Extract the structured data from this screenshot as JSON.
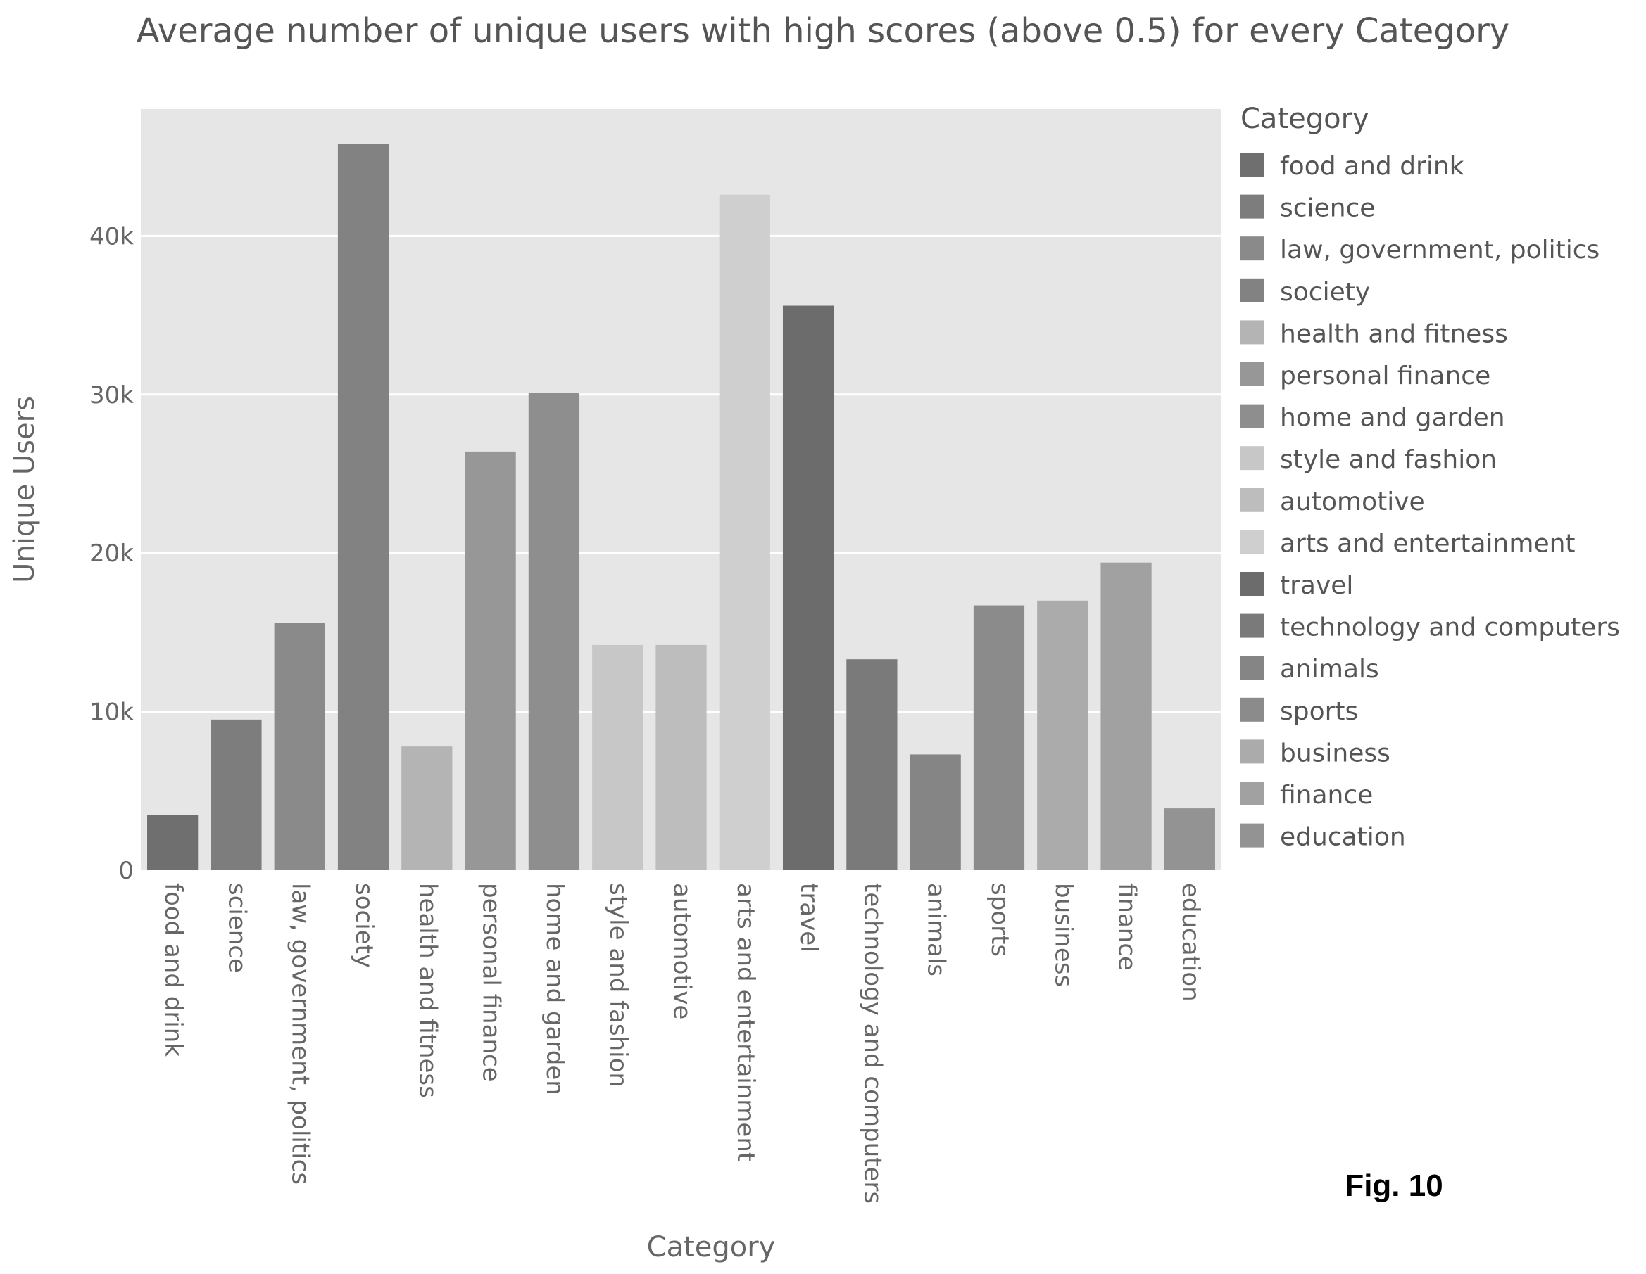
{
  "fig_label": "Fig. 10",
  "colors": {
    "plot_background": "#e6e6e6",
    "gridline": "#ffffff"
  },
  "chart_data": {
    "type": "bar",
    "title": "Average number of unique users with high scores (above 0.5) for every Category",
    "xlabel": "Category",
    "ylabel": "Unique Users",
    "legend_title": "Category",
    "legend_position": "right",
    "grid": true,
    "ylim": [
      0,
      48000
    ],
    "yticks": [
      {
        "value": 0,
        "label": "0"
      },
      {
        "value": 10000,
        "label": "10k"
      },
      {
        "value": 20000,
        "label": "20k"
      },
      {
        "value": 30000,
        "label": "30k"
      },
      {
        "value": 40000,
        "label": "40k"
      }
    ],
    "categories": [
      "food and drink",
      "science",
      "law, government, politics",
      "society",
      "health and fitness",
      "personal finance",
      "home and garden",
      "style and fashion",
      "automotive",
      "arts and entertainment",
      "travel",
      "technology and computers",
      "animals",
      "sports",
      "business",
      "finance",
      "education"
    ],
    "values": [
      3500,
      9500,
      15600,
      45800,
      7800,
      26400,
      30100,
      14200,
      14200,
      42600,
      35600,
      13300,
      7300,
      16700,
      17000,
      19400,
      3900
    ],
    "colors": [
      "#6f6f6f",
      "#7d7d7d",
      "#8a8a8a",
      "#828282",
      "#b4b4b4",
      "#979797",
      "#8e8e8e",
      "#c7c7c7",
      "#bdbdbd",
      "#cfcfcf",
      "#6c6c6c",
      "#7a7a7a",
      "#858585",
      "#8b8b8b",
      "#ababab",
      "#a1a1a1",
      "#939393"
    ]
  }
}
